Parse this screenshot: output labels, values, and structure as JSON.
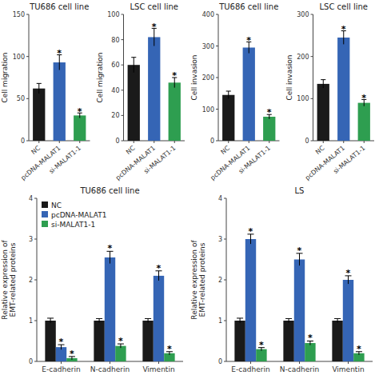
{
  "chart_data": [
    {
      "type": "bar",
      "title": "TU686 cell line",
      "categories": [
        "NC",
        "pcDNA-MALAT1",
        "si-MALAT1-1"
      ],
      "values": [
        62,
        93,
        30
      ],
      "errors": [
        6,
        9,
        3
      ],
      "colors": [
        "#1a1a1a",
        "#3565b5",
        "#2e9e50"
      ],
      "ylabel": "Cell migration",
      "ylim": [
        0,
        150
      ],
      "yticks": [
        0,
        50,
        100,
        150
      ],
      "annotations": [
        {
          "category": "pcDNA-MALAT1",
          "text": "*"
        },
        {
          "category": "si-MALAT1-1",
          "text": "*"
        }
      ]
    },
    {
      "type": "bar",
      "title": "LSC cell line",
      "categories": [
        "NC",
        "pcDNA-MALAT1",
        "si-MALAT1-1"
      ],
      "values": [
        60,
        82,
        46
      ],
      "errors": [
        6,
        7,
        4
      ],
      "colors": [
        "#1a1a1a",
        "#3565b5",
        "#2e9e50"
      ],
      "ylabel": "Cell migration",
      "ylim": [
        0,
        100
      ],
      "yticks": [
        0,
        20,
        40,
        60,
        80,
        100
      ],
      "annotations": [
        {
          "category": "pcDNA-MALAT1",
          "text": "*"
        },
        {
          "category": "si-MALAT1-1",
          "text": "*"
        }
      ]
    },
    {
      "type": "bar",
      "title": "TU686 cell line",
      "categories": [
        "NC",
        "pcDNA-MALAT1",
        "si-MALAT1-1"
      ],
      "values": [
        145,
        295,
        76
      ],
      "errors": [
        12,
        18,
        7
      ],
      "colors": [
        "#1a1a1a",
        "#3565b5",
        "#2e9e50"
      ],
      "ylabel": "Cell invasion",
      "ylim": [
        0,
        400
      ],
      "yticks": [
        0,
        100,
        200,
        300,
        400
      ],
      "annotations": [
        {
          "category": "pcDNA-MALAT1",
          "text": "*"
        },
        {
          "category": "si-MALAT1-1",
          "text": "*"
        }
      ]
    },
    {
      "type": "bar",
      "title": "LSC cell line",
      "categories": [
        "NC",
        "pcDNA-MALAT1",
        "si-MALAT1-1"
      ],
      "values": [
        135,
        245,
        90
      ],
      "errors": [
        10,
        16,
        8
      ],
      "colors": [
        "#1a1a1a",
        "#3565b5",
        "#2e9e50"
      ],
      "ylabel": "Cell invasion",
      "ylim": [
        0,
        300
      ],
      "yticks": [
        0,
        100,
        200,
        300
      ],
      "annotations": [
        {
          "category": "pcDNA-MALAT1",
          "text": "*"
        },
        {
          "category": "si-MALAT1-1",
          "text": "*"
        }
      ]
    },
    {
      "type": "bar",
      "title": "TU686 cell line",
      "categories": [
        "E-cadherin",
        "N-cadherin",
        "Vimentin"
      ],
      "series": [
        {
          "name": "NC",
          "color": "#1a1a1a",
          "values": [
            1.0,
            1.0,
            1.0
          ],
          "errors": [
            0.06,
            0.05,
            0.05
          ]
        },
        {
          "name": "pcDNA-MALAT1",
          "color": "#3565b5",
          "values": [
            0.35,
            2.55,
            2.1
          ],
          "errors": [
            0.06,
            0.15,
            0.12
          ]
        },
        {
          "name": "si-MALAT1-1",
          "color": "#2e9e50",
          "values": [
            0.08,
            0.38,
            0.2
          ],
          "errors": [
            0.04,
            0.05,
            0.04
          ]
        }
      ],
      "ylabel": "Relative expression of\nEMT-related proteins",
      "ylim": [
        0,
        4
      ],
      "yticks": [
        0,
        1,
        2,
        3,
        4
      ],
      "legend": "upper left",
      "annotations": [
        {
          "category": "E-cadherin",
          "series": "pcDNA-MALAT1",
          "text": "*"
        },
        {
          "category": "N-cadherin",
          "series": "pcDNA-MALAT1",
          "text": "*"
        },
        {
          "category": "Vimentin",
          "series": "pcDNA-MALAT1",
          "text": "*"
        },
        {
          "category": "E-cadherin",
          "series": "si-MALAT1-1",
          "text": "*"
        },
        {
          "category": "N-cadherin",
          "series": "si-MALAT1-1",
          "text": "*"
        },
        {
          "category": "Vimentin",
          "series": "si-MALAT1-1",
          "text": "*"
        }
      ]
    },
    {
      "type": "bar",
      "title": "LS",
      "categories": [
        "E-cadherin",
        "N-cadherin",
        "Vimentin"
      ],
      "series": [
        {
          "name": "NC",
          "color": "#1a1a1a",
          "values": [
            1.0,
            1.0,
            1.0
          ],
          "errors": [
            0.06,
            0.05,
            0.05
          ]
        },
        {
          "name": "pcDNA-MALAT1",
          "color": "#3565b5",
          "values": [
            3.0,
            2.5,
            2.0
          ],
          "errors": [
            0.12,
            0.15,
            0.1
          ]
        },
        {
          "name": "si-MALAT1-1",
          "color": "#2e9e50",
          "values": [
            0.3,
            0.45,
            0.2
          ],
          "errors": [
            0.04,
            0.05,
            0.04
          ]
        }
      ],
      "ylabel": "Relative expression of\nEMT-related proteins",
      "ylim": [
        0,
        4
      ],
      "yticks": [
        0,
        1,
        2,
        3,
        4
      ],
      "annotations": [
        {
          "category": "E-cadherin",
          "series": "pcDNA-MALAT1",
          "text": "*"
        },
        {
          "category": "N-cadherin",
          "series": "pcDNA-MALAT1",
          "text": "*"
        },
        {
          "category": "Vimentin",
          "series": "pcDNA-MALAT1",
          "text": "*"
        },
        {
          "category": "E-cadherin",
          "series": "si-MALAT1-1",
          "text": "*"
        },
        {
          "category": "N-cadherin",
          "series": "si-MALAT1-1",
          "text": "*"
        },
        {
          "category": "Vimentin",
          "series": "si-MALAT1-1",
          "text": "*"
        }
      ]
    }
  ]
}
